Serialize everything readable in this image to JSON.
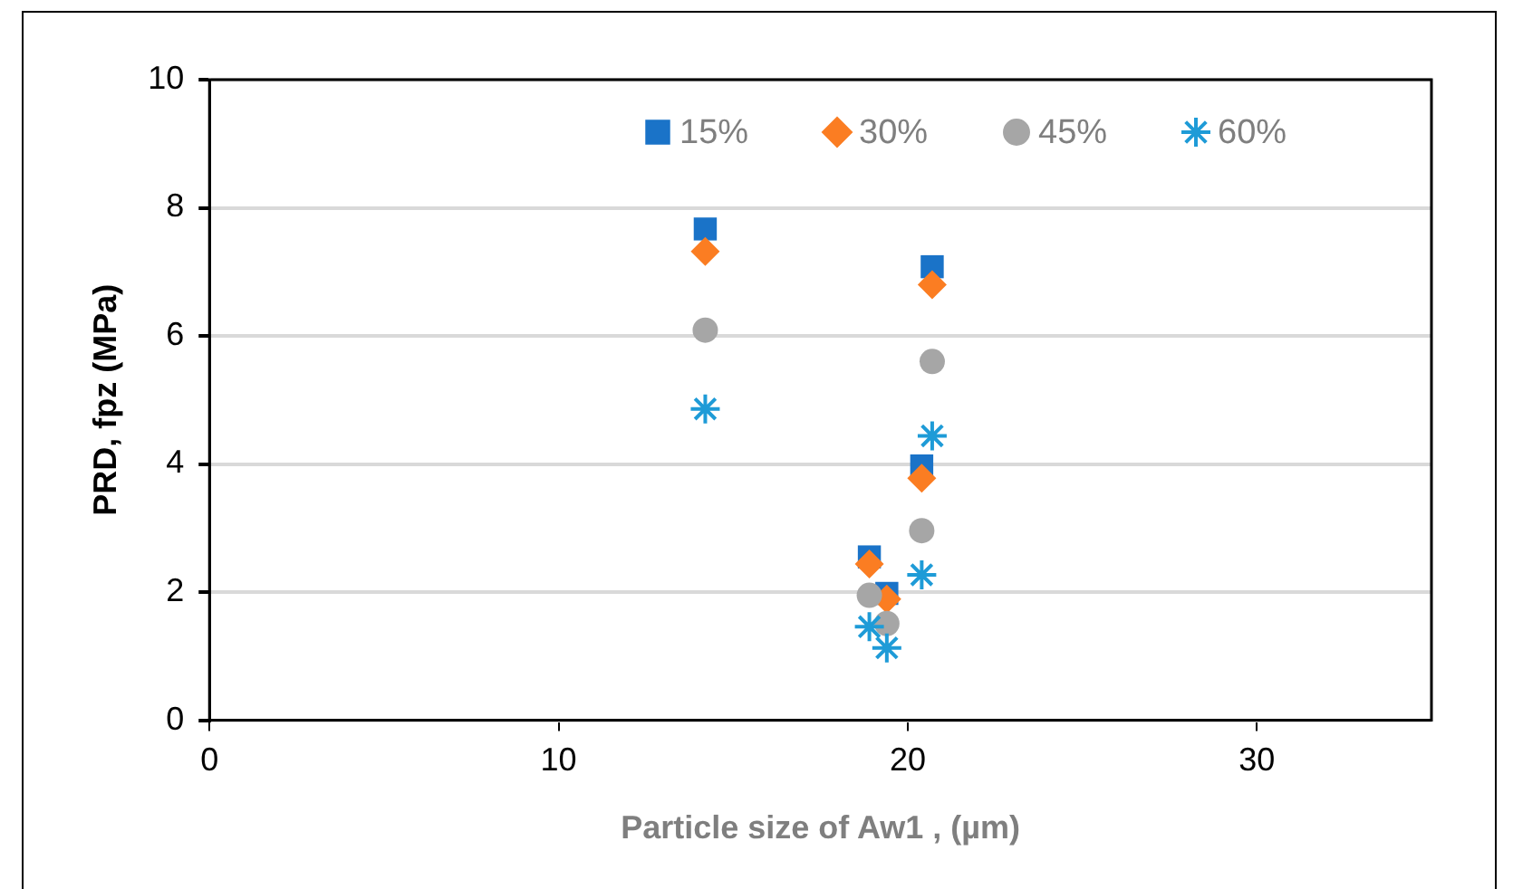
{
  "chart_data": {
    "type": "scatter",
    "xlabel": "Particle size of Aw1 , (µm)",
    "ylabel": "PRD, fpz (MPa)",
    "x": [
      14.2,
      18.9,
      19.4,
      20.4,
      20.7
    ],
    "xlim": [
      0,
      35
    ],
    "xticks": [
      0,
      10,
      20,
      30
    ],
    "ylim": [
      0,
      10
    ],
    "yticks": [
      0,
      2,
      4,
      6,
      8,
      10
    ],
    "grid": "y",
    "legend": "top right",
    "series": [
      {
        "name": "15%",
        "color": "#1a73c8",
        "marker": "square",
        "values": [
          7.67,
          2.55,
          1.98,
          3.97,
          7.08
        ]
      },
      {
        "name": "30%",
        "color": "#fb7d22",
        "marker": "diamond",
        "values": [
          7.32,
          2.44,
          1.89,
          3.78,
          6.8
        ]
      },
      {
        "name": "45%",
        "color": "#a6a6a6",
        "marker": "circle",
        "values": [
          6.09,
          1.95,
          1.51,
          2.96,
          5.6
        ]
      },
      {
        "name": "60%",
        "color": "#1e9bd7",
        "marker": "cross",
        "values": [
          4.86,
          1.46,
          1.13,
          2.27,
          4.44
        ]
      }
    ]
  }
}
